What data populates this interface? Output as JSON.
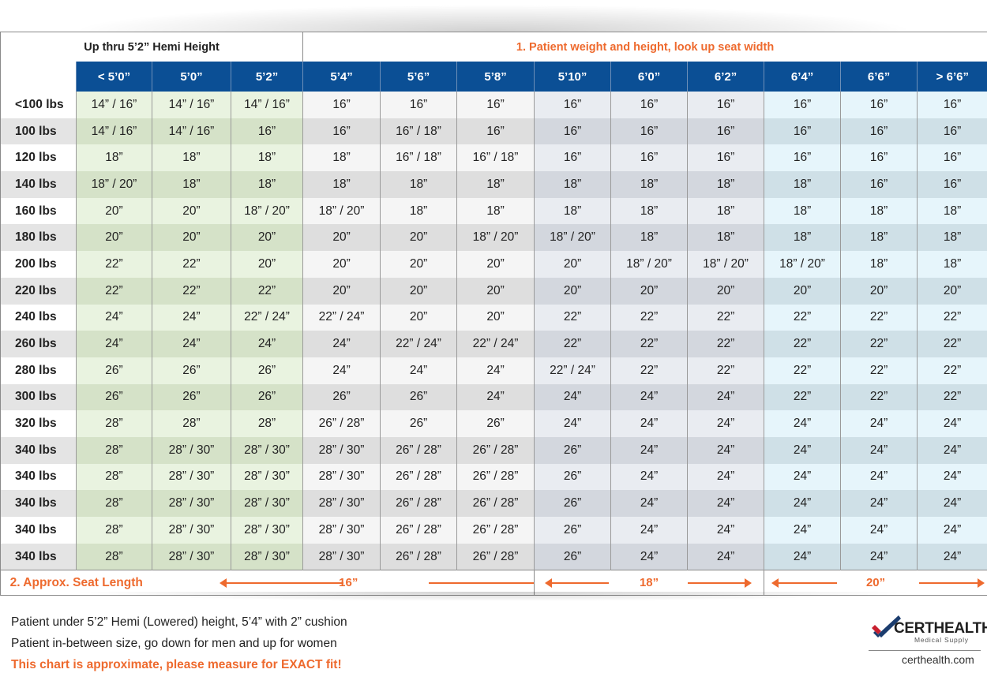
{
  "title_left": "Up thru 5’2” Hemi Height",
  "title_right": "1. Patient weight and height, look up seat width",
  "heights": [
    "< 5’0”",
    "5’0”",
    "5’2”",
    "5’4”",
    "5’6”",
    "5’8”",
    "5’10”",
    "6’0”",
    "6’2”",
    "6’4”",
    "6’6”",
    "> 6’6”"
  ],
  "rows": [
    {
      "weight": "<100 lbs",
      "values": [
        "14” / 16”",
        "14” / 16”",
        "14” / 16”",
        "16”",
        "16”",
        "16”",
        "16”",
        "16”",
        "16”",
        "16”",
        "16”",
        "16”"
      ]
    },
    {
      "weight": "100 lbs",
      "values": [
        "14” / 16”",
        "14” / 16”",
        "16”",
        "16”",
        "16” / 18”",
        "16”",
        "16”",
        "16”",
        "16”",
        "16”",
        "16”",
        "16”"
      ]
    },
    {
      "weight": "120 lbs",
      "values": [
        "18”",
        "18”",
        "18”",
        "18”",
        "16” / 18”",
        "16” / 18”",
        "16”",
        "16”",
        "16”",
        "16”",
        "16”",
        "16”"
      ]
    },
    {
      "weight": "140 lbs",
      "values": [
        "18” / 20”",
        "18”",
        "18”",
        "18”",
        "18”",
        "18”",
        "18”",
        "18”",
        "18”",
        "18”",
        "16”",
        "16”"
      ]
    },
    {
      "weight": "160 lbs",
      "values": [
        "20”",
        "20”",
        "18” / 20”",
        "18” / 20”",
        "18”",
        "18”",
        "18”",
        "18”",
        "18”",
        "18”",
        "18”",
        "18”"
      ]
    },
    {
      "weight": "180 lbs",
      "values": [
        "20”",
        "20”",
        "20”",
        "20”",
        "20”",
        "18” / 20”",
        "18” / 20”",
        "18”",
        "18”",
        "18”",
        "18”",
        "18”"
      ]
    },
    {
      "weight": "200 lbs",
      "values": [
        "22”",
        "22”",
        "20”",
        "20”",
        "20”",
        "20”",
        "20”",
        "18” / 20”",
        "18” / 20”",
        "18” / 20”",
        "18”",
        "18”"
      ]
    },
    {
      "weight": "220 lbs",
      "values": [
        "22”",
        "22”",
        "22”",
        "20”",
        "20”",
        "20”",
        "20”",
        "20”",
        "20”",
        "20”",
        "20”",
        "20”"
      ]
    },
    {
      "weight": "240 lbs",
      "values": [
        "24”",
        "24”",
        "22” / 24”",
        "22” / 24”",
        "20”",
        "20”",
        "22”",
        "22”",
        "22”",
        "22”",
        "22”",
        "22”"
      ]
    },
    {
      "weight": "260 lbs",
      "values": [
        "24”",
        "24”",
        "24”",
        "24”",
        "22” / 24”",
        "22” / 24”",
        "22”",
        "22”",
        "22”",
        "22”",
        "22”",
        "22”"
      ]
    },
    {
      "weight": "280 lbs",
      "values": [
        "26”",
        "26”",
        "26”",
        "24”",
        "24”",
        "24”",
        "22” / 24”",
        "22”",
        "22”",
        "22”",
        "22”",
        "22”"
      ]
    },
    {
      "weight": "300 lbs",
      "values": [
        "26”",
        "26”",
        "26”",
        "26”",
        "26”",
        "24”",
        "24”",
        "24”",
        "24”",
        "22”",
        "22”",
        "22”"
      ]
    },
    {
      "weight": "320 lbs",
      "values": [
        "28”",
        "28”",
        "28”",
        "26” / 28”",
        "26”",
        "26”",
        "24”",
        "24”",
        "24”",
        "24”",
        "24”",
        "24”"
      ]
    },
    {
      "weight": "340 lbs",
      "values": [
        "28”",
        "28” / 30”",
        "28” / 30”",
        "28” / 30”",
        "26” / 28”",
        "26” / 28”",
        "26”",
        "24”",
        "24”",
        "24”",
        "24”",
        "24”"
      ]
    },
    {
      "weight": "340 lbs",
      "values": [
        "28”",
        "28” / 30”",
        "28” / 30”",
        "28” / 30”",
        "26” / 28”",
        "26” / 28”",
        "26”",
        "24”",
        "24”",
        "24”",
        "24”",
        "24”"
      ]
    },
    {
      "weight": "340 lbs",
      "values": [
        "28”",
        "28” / 30”",
        "28” / 30”",
        "28” / 30”",
        "26” / 28”",
        "26” / 28”",
        "26”",
        "24”",
        "24”",
        "24”",
        "24”",
        "24”"
      ]
    },
    {
      "weight": "340 lbs",
      "values": [
        "28”",
        "28” / 30”",
        "28” / 30”",
        "28” / 30”",
        "26” / 28”",
        "26” / 28”",
        "26”",
        "24”",
        "24”",
        "24”",
        "24”",
        "24”"
      ]
    },
    {
      "weight": "340 lbs",
      "values": [
        "28”",
        "28” / 30”",
        "28” / 30”",
        "28” / 30”",
        "26” / 28”",
        "26” / 28”",
        "26”",
        "24”",
        "24”",
        "24”",
        "24”",
        "24”"
      ]
    }
  ],
  "seat_length_label": "2. Approx. Seat Length",
  "seat_lengths": [
    "16”",
    "18”",
    "20”"
  ],
  "notes": [
    "Patient under 5’2” Hemi (Lowered) height, 5’4” with 2” cushion",
    "Patient in-between size, go down for men and up for women"
  ],
  "warning": "This chart is approximate, please measure for EXACT fit!",
  "logo": {
    "name": "CERTHEALTH",
    "sub": "Medical Supply",
    "url": "certhealth.com"
  },
  "colors": {
    "header_blue": "#0b4f95",
    "accent_orange": "#ee6a2e",
    "logo_red": "#c8202f",
    "logo_navy": "#1b3c6e"
  }
}
